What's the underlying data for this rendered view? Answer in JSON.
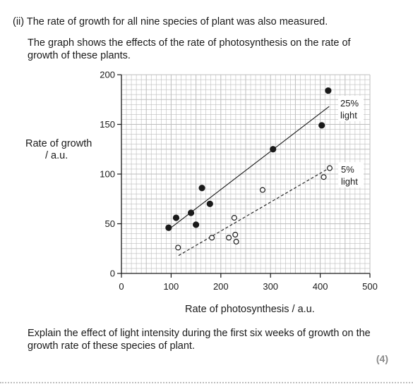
{
  "question": {
    "part": "(ii) The rate of growth for all nine species of plant was also measured.",
    "intro_line1": "The graph shows the effects of the rate of photosynthesis on the rate of",
    "intro_line2": "growth of these plants.",
    "explain_line1": "Explain the effect of light intensity during the first six weeks of growth on the",
    "explain_line2": "growth rate of these species of plant.",
    "marks": "(4)"
  },
  "chart_data": {
    "type": "scatter",
    "xlabel": "Rate of photosynthesis / a.u.",
    "ylabel_line1": "Rate of growth",
    "ylabel_line2": "/ a.u.",
    "xlim": [
      0,
      500
    ],
    "ylim": [
      0,
      200
    ],
    "xticks": [
      0,
      100,
      200,
      300,
      400,
      500
    ],
    "yticks": [
      0,
      50,
      100,
      150,
      200
    ],
    "grid": true,
    "series": [
      {
        "name": "25% light",
        "label_line1": "25%",
        "label_line2": "light",
        "marker": "filled",
        "x": [
          95,
          110,
          140,
          150,
          162,
          178,
          305,
          403,
          416
        ],
        "y": [
          46,
          56,
          61,
          49,
          86,
          70,
          125,
          149,
          184
        ],
        "fit": {
          "x": [
            97,
            418
          ],
          "y": [
            45,
            168
          ]
        }
      },
      {
        "name": "5% light",
        "label_line1": "5%",
        "label_line2": "light",
        "marker": "open",
        "x": [
          114,
          182,
          216,
          227,
          229,
          231,
          284,
          407,
          419
        ],
        "y": [
          26,
          36,
          36,
          56,
          39,
          32,
          84,
          97,
          106
        ],
        "fit": {
          "x": [
            115,
            418
          ],
          "y": [
            18,
            106
          ]
        }
      }
    ]
  },
  "colors": {
    "ink": "#1a1a1a",
    "grid": "#bdbdbd",
    "marks": "#8a8a8a"
  }
}
